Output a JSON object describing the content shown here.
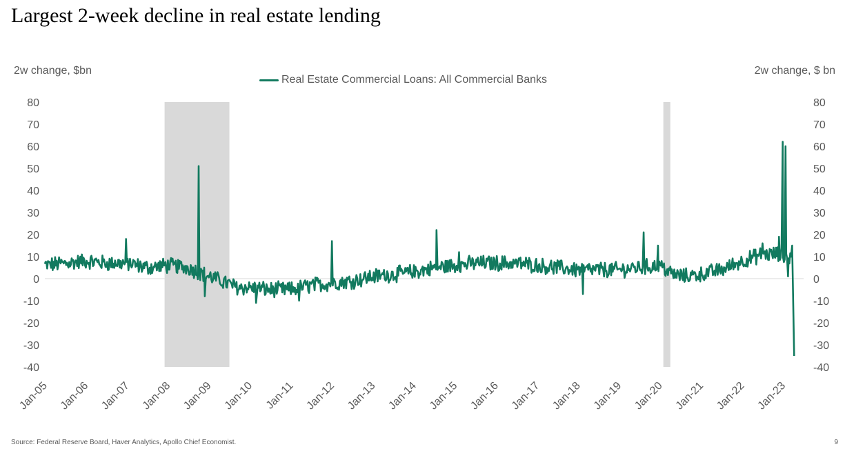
{
  "chart_data": {
    "type": "line",
    "title": "Largest 2-week decline in real estate lending",
    "ylabel_left": "2w change, $bn",
    "ylabel_right": "2w change, $ bn",
    "ylim": [
      -40,
      80
    ],
    "yticks": [
      80,
      70,
      60,
      50,
      40,
      30,
      20,
      10,
      0,
      -10,
      -20,
      -30,
      -40
    ],
    "xlim": [
      2005.0,
      2023.5
    ],
    "xtick_labels": [
      "Jan-05",
      "Jan-06",
      "Jan-07",
      "Jan-08",
      "Jan-09",
      "Jan-10",
      "Jan-11",
      "Jan-12",
      "Jan-13",
      "Jan-14",
      "Jan-15",
      "Jan-16",
      "Jan-17",
      "Jan-18",
      "Jan-19",
      "Jan-20",
      "Jan-21",
      "Jan-22",
      "Jan-23"
    ],
    "recessions": [
      {
        "start": 2007.92,
        "end": 2009.5
      },
      {
        "start": 2020.08,
        "end": 2020.25
      }
    ],
    "series": [
      {
        "name": "Real Estate Commercial Loans: All Commercial Banks",
        "color": "#127a5f",
        "anchors": [
          [
            2005.0,
            6
          ],
          [
            2005.5,
            7
          ],
          [
            2006.0,
            8
          ],
          [
            2006.5,
            7
          ],
          [
            2007.0,
            7
          ],
          [
            2007.5,
            5
          ],
          [
            2008.0,
            6
          ],
          [
            2008.5,
            5
          ],
          [
            2008.75,
            3
          ],
          [
            2009.0,
            1
          ],
          [
            2009.3,
            -1
          ],
          [
            2009.7,
            -4
          ],
          [
            2010.0,
            -4
          ],
          [
            2010.5,
            -5
          ],
          [
            2011.0,
            -5
          ],
          [
            2011.5,
            -3
          ],
          [
            2012.0,
            -2
          ],
          [
            2012.5,
            -1
          ],
          [
            2013.0,
            1
          ],
          [
            2013.5,
            2
          ],
          [
            2014.0,
            3
          ],
          [
            2014.5,
            5
          ],
          [
            2015.0,
            6
          ],
          [
            2015.5,
            7
          ],
          [
            2016.0,
            7
          ],
          [
            2016.5,
            7
          ],
          [
            2017.0,
            6
          ],
          [
            2017.5,
            5
          ],
          [
            2018.0,
            4
          ],
          [
            2018.5,
            4
          ],
          [
            2019.0,
            4
          ],
          [
            2019.5,
            5
          ],
          [
            2020.0,
            6
          ],
          [
            2020.3,
            2
          ],
          [
            2020.6,
            1
          ],
          [
            2021.0,
            2
          ],
          [
            2021.5,
            4
          ],
          [
            2022.0,
            8
          ],
          [
            2022.5,
            11
          ],
          [
            2022.9,
            11
          ],
          [
            2023.0,
            10
          ],
          [
            2023.2,
            10
          ]
        ],
        "spikes": [
          [
            2006.98,
            18
          ],
          [
            2008.75,
            51
          ],
          [
            2008.9,
            -8
          ],
          [
            2010.15,
            -11
          ],
          [
            2011.2,
            -10
          ],
          [
            2012.0,
            17
          ],
          [
            2014.55,
            22
          ],
          [
            2015.1,
            12
          ],
          [
            2018.12,
            -7
          ],
          [
            2019.6,
            21
          ],
          [
            2019.95,
            15
          ],
          [
            2022.5,
            16
          ],
          [
            2022.9,
            19
          ],
          [
            2022.99,
            62
          ],
          [
            2023.06,
            60
          ],
          [
            2023.12,
            1
          ],
          [
            2023.22,
            15
          ],
          [
            2023.27,
            -35
          ]
        ],
        "noise_amplitude": 3.2
      }
    ]
  },
  "footer": {
    "source": "Source: Federal Reserve Board, Haver Analytics, Apollo Chief Economist.",
    "page_number": "9"
  }
}
